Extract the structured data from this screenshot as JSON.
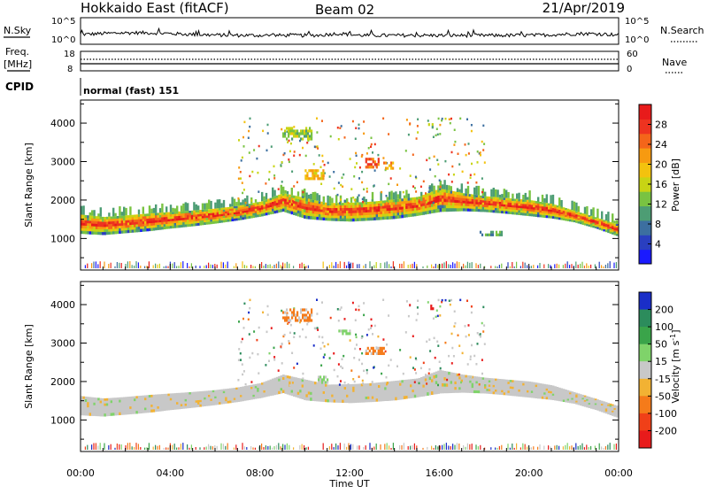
{
  "header": {
    "station": "Hokkaido East (fitACF)",
    "beam": "Beam 02",
    "date": "21/Apr/2019"
  },
  "noise_panel": {
    "left_label": "N.Sky",
    "right_label": "N.Search",
    "tick_top": "10^5",
    "tick_bottom": "10^0"
  },
  "freq_panel": {
    "left_label_1": "Freq.",
    "left_label_2": "[MHz]",
    "left_tick_top": "18",
    "left_tick_bottom": "8",
    "right_label": "Nave",
    "right_tick_top": "60",
    "right_tick_bottom": "0"
  },
  "cpid_panel": {
    "label": "CPID",
    "text": "normal (fast) 151"
  },
  "chart_data": [
    {
      "type": "heatmap",
      "name": "power",
      "ylabel": "Slant Range [km]",
      "ylim": [
        180,
        4600
      ],
      "yticks": [
        1000,
        2000,
        3000,
        4000
      ],
      "xlim": [
        0,
        24
      ],
      "colorbar": {
        "label": "Power [dB]",
        "ticks": [
          4,
          8,
          12,
          16,
          20,
          24,
          28
        ],
        "range": [
          0,
          32
        ],
        "colors": [
          "#1a1aff",
          "#2a3fc0",
          "#3c6fa0",
          "#4d9d74",
          "#79c342",
          "#c8d414",
          "#f3c20e",
          "#f79a10",
          "#f4651a",
          "#ee3320",
          "#e81b1b"
        ]
      },
      "band_lower_km": [
        [
          0.0,
          1130
        ],
        [
          1.0,
          1100
        ],
        [
          2.0,
          1150
        ],
        [
          3.0,
          1200
        ],
        [
          4.0,
          1270
        ],
        [
          5.0,
          1330
        ],
        [
          6.0,
          1400
        ],
        [
          7.0,
          1480
        ],
        [
          8.0,
          1580
        ],
        [
          9.0,
          1710
        ],
        [
          10.0,
          1520
        ],
        [
          11.0,
          1470
        ],
        [
          12.0,
          1450
        ],
        [
          13.0,
          1480
        ],
        [
          14.0,
          1520
        ],
        [
          15.0,
          1600
        ],
        [
          16.0,
          1700
        ],
        [
          17.0,
          1720
        ],
        [
          18.0,
          1700
        ],
        [
          19.0,
          1650
        ],
        [
          20.0,
          1590
        ],
        [
          21.0,
          1530
        ],
        [
          22.0,
          1430
        ],
        [
          23.0,
          1260
        ],
        [
          24.0,
          1050
        ]
      ],
      "band_upper_km": [
        [
          0.0,
          1620
        ],
        [
          1.0,
          1560
        ],
        [
          2.0,
          1600
        ],
        [
          3.0,
          1650
        ],
        [
          4.0,
          1690
        ],
        [
          5.0,
          1730
        ],
        [
          6.0,
          1780
        ],
        [
          7.0,
          1850
        ],
        [
          8.0,
          1960
        ],
        [
          9.0,
          2180
        ],
        [
          10.0,
          2050
        ],
        [
          11.0,
          1920
        ],
        [
          12.0,
          1930
        ],
        [
          13.0,
          1960
        ],
        [
          14.0,
          2020
        ],
        [
          15.0,
          2080
        ],
        [
          16.0,
          2300
        ],
        [
          17.0,
          2180
        ],
        [
          18.0,
          2100
        ],
        [
          19.0,
          2050
        ],
        [
          20.0,
          2000
        ],
        [
          21.0,
          1900
        ],
        [
          22.0,
          1720
        ],
        [
          23.0,
          1540
        ],
        [
          24.0,
          1350
        ]
      ],
      "upper_patches": [
        {
          "t0": 9.0,
          "t1": 10.3,
          "r0": 3600,
          "r1": 3900,
          "value": 14
        },
        {
          "t0": 12.7,
          "t1": 13.3,
          "r0": 2850,
          "r1": 3100,
          "value": 26
        },
        {
          "t0": 13.5,
          "t1": 13.9,
          "r0": 2800,
          "r1": 3000,
          "value": 22
        },
        {
          "t0": 10.0,
          "t1": 10.8,
          "r0": 2550,
          "r1": 2800,
          "value": 20
        },
        {
          "t0": 15.5,
          "t1": 15.7,
          "r0": 3900,
          "r1": 4000,
          "value": 12
        },
        {
          "t0": 17.8,
          "t1": 18.8,
          "r0": 1100,
          "r1": 1200,
          "value": 10
        }
      ]
    },
    {
      "type": "heatmap",
      "name": "velocity",
      "ylabel": "Slant Range [km]",
      "xlabel": "Time UT",
      "ylim": [
        180,
        4600
      ],
      "yticks": [
        1000,
        2000,
        3000,
        4000
      ],
      "xlim": [
        0,
        24
      ],
      "xticks": [
        "00:00",
        "04:00",
        "08:00",
        "12:00",
        "16:00",
        "20:00",
        "00:00"
      ],
      "colorbar": {
        "label": "Velocity [m s^-1]",
        "ticks": [
          200,
          100,
          50,
          15,
          -15,
          -50,
          -100,
          -200
        ],
        "colors": [
          "#1a2ec8",
          "#2c8c5c",
          "#3aa44a",
          "#7fd36a",
          "#c8c8c8",
          "#f2b233",
          "#f57b1a",
          "#f04018",
          "#e81b1b"
        ]
      },
      "dominant_value": "ground scatter (grey)",
      "upper_patches": [
        {
          "t0": 9.0,
          "t1": 10.3,
          "r0": 3600,
          "r1": 3900,
          "value": -50
        },
        {
          "t0": 11.5,
          "t1": 12.0,
          "r0": 3250,
          "r1": 3350,
          "value": 15
        },
        {
          "t0": 12.7,
          "t1": 13.5,
          "r0": 2700,
          "r1": 2900,
          "value": -50
        },
        {
          "t0": 15.6,
          "t1": 15.8,
          "r0": 3900,
          "r1": 4000,
          "value": -200
        },
        {
          "t0": 10.5,
          "t1": 11.0,
          "r0": 2000,
          "r1": 2150,
          "value": 15
        }
      ]
    }
  ]
}
